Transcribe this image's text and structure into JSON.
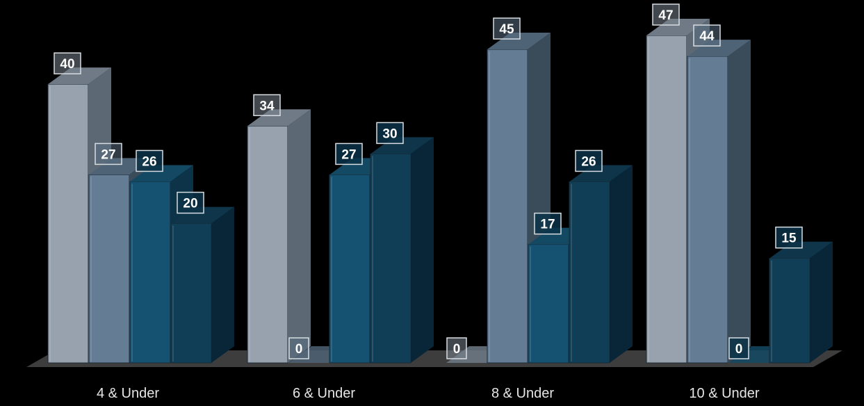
{
  "chart_data": {
    "type": "bar",
    "categories": [
      "4 & Under",
      "6 & Under",
      "8 & Under",
      "10 & Under"
    ],
    "series": [
      {
        "values": [
          40,
          34,
          0,
          47
        ]
      },
      {
        "values": [
          27,
          0,
          45,
          44
        ]
      },
      {
        "values": [
          26,
          27,
          17,
          0
        ]
      },
      {
        "values": [
          20,
          30,
          26,
          15
        ]
      }
    ],
    "ylim": [
      0,
      47
    ],
    "three_d": true,
    "data_labels": true,
    "grid": false,
    "legend": "none"
  },
  "colors": {
    "background": "#000000",
    "floor": "#3d3d3d",
    "series": [
      {
        "front": "#97a2ae",
        "side": "#5c6874",
        "top": "#6f7a86"
      },
      {
        "front": "#647d95",
        "side": "#3a4b5a",
        "top": "#4e6376"
      },
      {
        "front": "#155272",
        "side": "#0c3348",
        "top": "#134963"
      },
      {
        "front": "#103e56",
        "side": "#082637",
        "top": "#0e3549"
      }
    ]
  }
}
